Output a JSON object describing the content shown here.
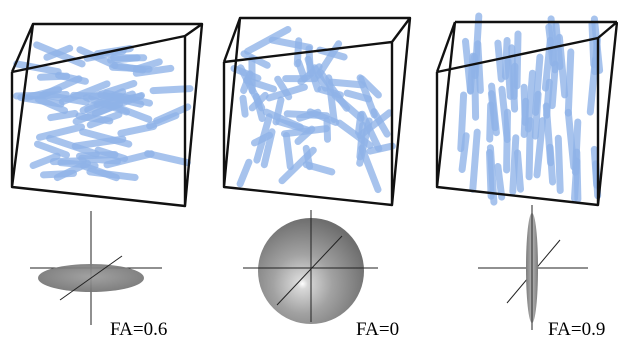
{
  "panels": [
    {
      "orientation": "planar",
      "fa_label": "FA=0.6"
    },
    {
      "orientation": "isotropic",
      "fa_label": "FA=0"
    },
    {
      "orientation": "vertical",
      "fa_label": "FA=0.9"
    }
  ],
  "colors": {
    "rod": "#8fb3e8",
    "box_edge": "#111111",
    "ellipsoid": "#8a8a8a"
  }
}
